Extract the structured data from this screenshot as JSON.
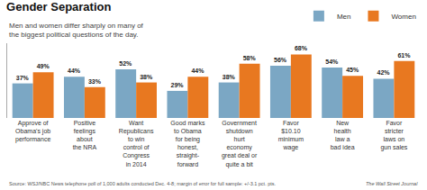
{
  "chart_data": {
    "type": "bar",
    "title": "Gender Separation",
    "subtitle": "Men and women differ sharply on many of\nthe biggest political questions of the day.",
    "annotations": [
      "Source: WSJ/NBC News telephone poll of 1,000 adults conducted Dec. 4-8; margin of error for full sample: +/-3.1 pct. pts.",
      "The Wall Street Journal"
    ],
    "categories": [
      "Approve of\nObama's job\nperformance",
      "Positive\nfeelings\nabout\nthe NRA",
      "Want\nRepublicans\nto win\ncontrol of\nCongress\nin 2014",
      "Good marks\nto Obama\nfor being\nhonest,\nstraight-\nforward",
      "Government\nshutdown\nhurt\neconomy\ngreat deal or\nquite a bit",
      "Favor\n$10.10\nminimum\nwage",
      "New\nhealth\nlaw a\nbad idea",
      "Favor\nstricter\nlaws on\ngun sales"
    ],
    "series": [
      {
        "name": "Men",
        "color": "#7ba7c4",
        "values": [
          37,
          44,
          52,
          29,
          38,
          56,
          54,
          42
        ],
        "value_labels": [
          "37%",
          "44%",
          "52%",
          "29%",
          "38%",
          "56%",
          "54%",
          "42%"
        ]
      },
      {
        "name": "Women",
        "color": "#e87820",
        "values": [
          49,
          33,
          38,
          44,
          58,
          68,
          45,
          61
        ],
        "value_labels": [
          "49%",
          "33%",
          "38%",
          "44%",
          "58%",
          "68%",
          "45%",
          "61%"
        ]
      }
    ],
    "ylim": [
      0,
      80
    ],
    "tick_labels": "x",
    "data_labels": true,
    "grid": false,
    "legend": "top right"
  }
}
